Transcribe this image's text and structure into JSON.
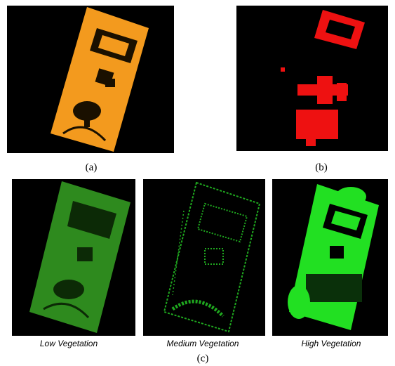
{
  "figure": {
    "panels": [
      {
        "label": "(a)"
      },
      {
        "label": "(b)"
      }
    ],
    "subpanels": [
      {
        "caption": "Low Vegetation"
      },
      {
        "caption": "Medium Vegetation"
      },
      {
        "caption": "High Vegetation"
      }
    ],
    "group_label": "(c)"
  }
}
